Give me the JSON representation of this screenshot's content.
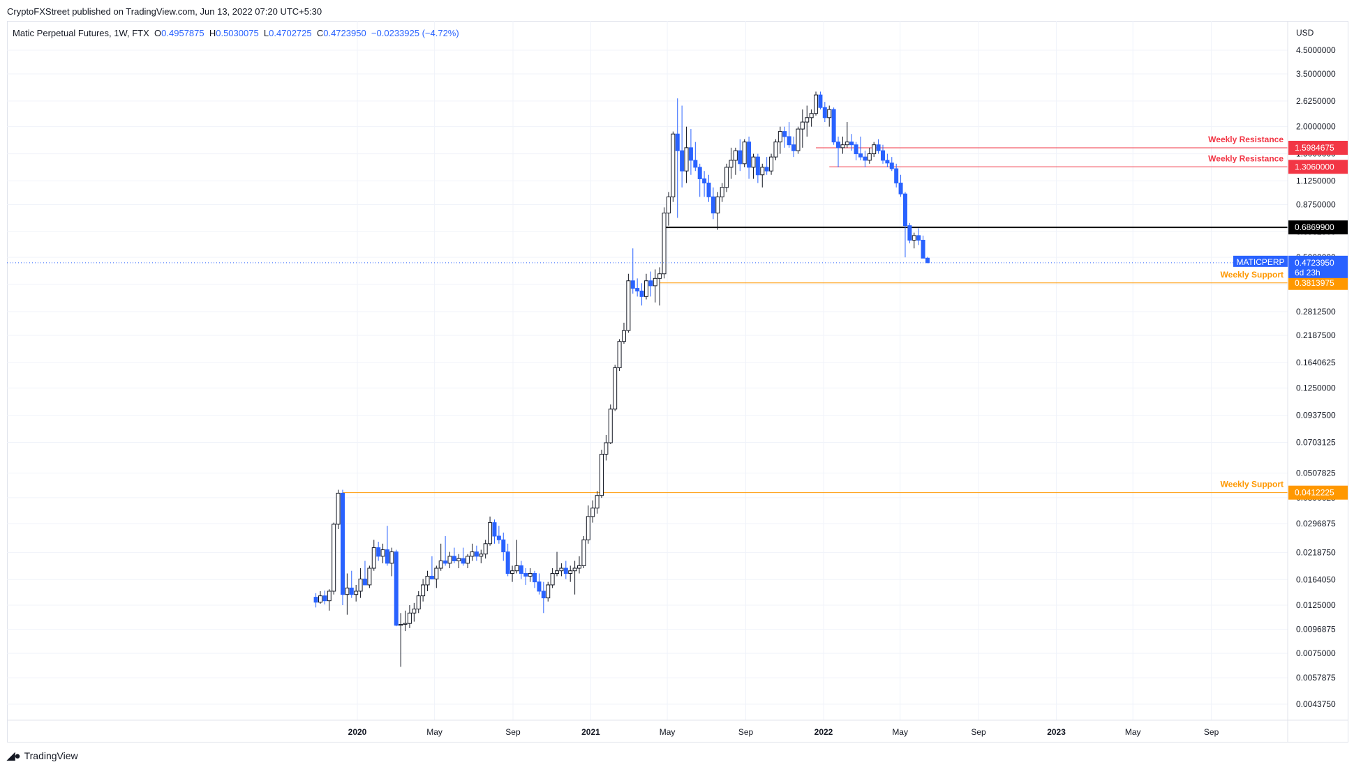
{
  "publisher": "CryptoFXStreet published on TradingView.com, Jun 13, 2022 07:20 UTC+5:30",
  "legend": {
    "symbol": "Matic Perpetual Futures, 1W, FTX",
    "o_label": "O",
    "o": "0.4957875",
    "h_label": "H",
    "h": "0.5030075",
    "l_label": "L",
    "l": "0.4702725",
    "c_label": "C",
    "c": "0.4723950",
    "change": "−0.0233925 (−4.72%)"
  },
  "footer_logo": "TradingView",
  "chart_data": {
    "type": "candlestick",
    "scale": "log",
    "currency": "USD",
    "y_ticks": [
      "4.5000000",
      "3.5000000",
      "2.6250000",
      "2.0000000",
      "1.5000000",
      "1.1250000",
      "0.8750000",
      "0.6562500",
      "0.5000000",
      "0.3750000",
      "0.2812500",
      "0.2187500",
      "0.1640625",
      "0.1250000",
      "0.0937500",
      "0.0703125",
      "0.0507825",
      "0.0390625",
      "0.0296875",
      "0.0218750",
      "0.0164050",
      "0.0125000",
      "0.0096875",
      "0.0075000",
      "0.0057875",
      "0.0043750"
    ],
    "x_ticks": [
      {
        "label": "2020",
        "date": "2020-01-01",
        "bold": true
      },
      {
        "label": "May",
        "date": "2020-05-01",
        "bold": false
      },
      {
        "label": "Sep",
        "date": "2020-09-01",
        "bold": false
      },
      {
        "label": "2021",
        "date": "2021-01-01",
        "bold": true
      },
      {
        "label": "May",
        "date": "2021-05-01",
        "bold": false
      },
      {
        "label": "Sep",
        "date": "2021-09-01",
        "bold": false
      },
      {
        "label": "2022",
        "date": "2022-01-01",
        "bold": true
      },
      {
        "label": "May",
        "date": "2022-05-01",
        "bold": false
      },
      {
        "label": "Sep",
        "date": "2022-09-01",
        "bold": false
      },
      {
        "label": "2023",
        "date": "2023-01-01",
        "bold": true
      },
      {
        "label": "May",
        "date": "2023-05-01",
        "bold": false
      },
      {
        "label": "Sep",
        "date": "2023-09-01",
        "bold": false
      }
    ],
    "levels": [
      {
        "name": "Weekly Resistance",
        "price": 1.5984675,
        "label": "1.5984675",
        "color": "#f23645",
        "from": "2021-12-20"
      },
      {
        "name": "Weekly Resistance",
        "price": 1.306,
        "label": "1.3060000",
        "color": "#f23645",
        "from": "2022-01-10"
      },
      {
        "name": "",
        "price": 0.68699,
        "label": "0.6869900",
        "color": "#000000",
        "from": "2021-04-26"
      },
      {
        "name": "Weekly Support",
        "price": 0.3813975,
        "label": "0.3813975",
        "color": "#ff9800",
        "from": "2021-04-19"
      },
      {
        "name": "Weekly Support",
        "price": 0.0412225,
        "label": "0.0412225",
        "color": "#ff9800",
        "from": "2019-12-09"
      }
    ],
    "last_price": {
      "symbol": "MATICPERP",
      "price": 0.472395,
      "label": "0.4723950",
      "countdown": "6d 23h",
      "color": "#2962ff"
    },
    "up_color": "#ffffff",
    "down_color": "#2962ff",
    "candles": [
      {
        "d": "2019-10-28",
        "o": 0.0136,
        "h": 0.0142,
        "l": 0.0122,
        "c": 0.0129
      },
      {
        "d": "2019-11-04",
        "o": 0.0129,
        "h": 0.0145,
        "l": 0.0127,
        "c": 0.0138
      },
      {
        "d": "2019-11-11",
        "o": 0.0138,
        "h": 0.0146,
        "l": 0.0126,
        "c": 0.0131
      },
      {
        "d": "2019-11-18",
        "o": 0.0131,
        "h": 0.0148,
        "l": 0.0118,
        "c": 0.0145
      },
      {
        "d": "2019-11-25",
        "o": 0.0145,
        "h": 0.03,
        "l": 0.014,
        "c": 0.0295
      },
      {
        "d": "2019-12-02",
        "o": 0.0295,
        "h": 0.0425,
        "l": 0.028,
        "c": 0.041
      },
      {
        "d": "2019-12-09",
        "o": 0.041,
        "h": 0.0425,
        "l": 0.0125,
        "c": 0.014
      },
      {
        "d": "2019-12-16",
        "o": 0.014,
        "h": 0.0175,
        "l": 0.0113,
        "c": 0.015
      },
      {
        "d": "2019-12-23",
        "o": 0.015,
        "h": 0.018,
        "l": 0.0135,
        "c": 0.014
      },
      {
        "d": "2019-12-30",
        "o": 0.014,
        "h": 0.0155,
        "l": 0.013,
        "c": 0.0145
      },
      {
        "d": "2020-01-06",
        "o": 0.0145,
        "h": 0.0185,
        "l": 0.0135,
        "c": 0.0165
      },
      {
        "d": "2020-01-13",
        "o": 0.0165,
        "h": 0.02,
        "l": 0.0155,
        "c": 0.0155
      },
      {
        "d": "2020-01-20",
        "o": 0.0155,
        "h": 0.019,
        "l": 0.015,
        "c": 0.0185
      },
      {
        "d": "2020-01-27",
        "o": 0.0185,
        "h": 0.025,
        "l": 0.018,
        "c": 0.023
      },
      {
        "d": "2020-02-03",
        "o": 0.023,
        "h": 0.0245,
        "l": 0.02,
        "c": 0.021
      },
      {
        "d": "2020-02-10",
        "o": 0.021,
        "h": 0.024,
        "l": 0.0195,
        "c": 0.0225
      },
      {
        "d": "2020-02-17",
        "o": 0.0225,
        "h": 0.029,
        "l": 0.019,
        "c": 0.0195
      },
      {
        "d": "2020-02-24",
        "o": 0.0195,
        "h": 0.023,
        "l": 0.017,
        "c": 0.022
      },
      {
        "d": "2020-03-02",
        "o": 0.022,
        "h": 0.0225,
        "l": 0.01,
        "c": 0.0101
      },
      {
        "d": "2020-03-09",
        "o": 0.0101,
        "h": 0.0115,
        "l": 0.0065,
        "c": 0.0102
      },
      {
        "d": "2020-03-16",
        "o": 0.0102,
        "h": 0.0118,
        "l": 0.0095,
        "c": 0.0103
      },
      {
        "d": "2020-03-23",
        "o": 0.0103,
        "h": 0.0125,
        "l": 0.0098,
        "c": 0.0115
      },
      {
        "d": "2020-03-30",
        "o": 0.0115,
        "h": 0.0128,
        "l": 0.0105,
        "c": 0.012
      },
      {
        "d": "2020-04-06",
        "o": 0.012,
        "h": 0.0145,
        "l": 0.0115,
        "c": 0.0138
      },
      {
        "d": "2020-04-13",
        "o": 0.0138,
        "h": 0.0165,
        "l": 0.013,
        "c": 0.0155
      },
      {
        "d": "2020-04-20",
        "o": 0.0155,
        "h": 0.018,
        "l": 0.0145,
        "c": 0.017
      },
      {
        "d": "2020-04-27",
        "o": 0.017,
        "h": 0.021,
        "l": 0.0165,
        "c": 0.0165
      },
      {
        "d": "2020-05-04",
        "o": 0.0165,
        "h": 0.019,
        "l": 0.015,
        "c": 0.0185
      },
      {
        "d": "2020-05-11",
        "o": 0.0185,
        "h": 0.024,
        "l": 0.018,
        "c": 0.02
      },
      {
        "d": "2020-05-18",
        "o": 0.02,
        "h": 0.026,
        "l": 0.019,
        "c": 0.0195
      },
      {
        "d": "2020-05-25",
        "o": 0.0195,
        "h": 0.022,
        "l": 0.0185,
        "c": 0.021
      },
      {
        "d": "2020-06-01",
        "o": 0.021,
        "h": 0.023,
        "l": 0.0195,
        "c": 0.02
      },
      {
        "d": "2020-06-08",
        "o": 0.02,
        "h": 0.0215,
        "l": 0.0185,
        "c": 0.0205
      },
      {
        "d": "2020-06-15",
        "o": 0.0205,
        "h": 0.023,
        "l": 0.019,
        "c": 0.0195
      },
      {
        "d": "2020-06-22",
        "o": 0.0195,
        "h": 0.0215,
        "l": 0.0185,
        "c": 0.021
      },
      {
        "d": "2020-06-29",
        "o": 0.021,
        "h": 0.024,
        "l": 0.02,
        "c": 0.022
      },
      {
        "d": "2020-07-06",
        "o": 0.022,
        "h": 0.0235,
        "l": 0.02,
        "c": 0.021
      },
      {
        "d": "2020-07-13",
        "o": 0.021,
        "h": 0.0225,
        "l": 0.0195,
        "c": 0.0215
      },
      {
        "d": "2020-07-20",
        "o": 0.0215,
        "h": 0.025,
        "l": 0.0205,
        "c": 0.024
      },
      {
        "d": "2020-07-27",
        "o": 0.024,
        "h": 0.032,
        "l": 0.0235,
        "c": 0.03
      },
      {
        "d": "2020-08-03",
        "o": 0.03,
        "h": 0.031,
        "l": 0.024,
        "c": 0.026
      },
      {
        "d": "2020-08-10",
        "o": 0.026,
        "h": 0.029,
        "l": 0.024,
        "c": 0.025
      },
      {
        "d": "2020-08-17",
        "o": 0.025,
        "h": 0.027,
        "l": 0.02,
        "c": 0.022
      },
      {
        "d": "2020-08-24",
        "o": 0.022,
        "h": 0.024,
        "l": 0.017,
        "c": 0.0175
      },
      {
        "d": "2020-08-31",
        "o": 0.0175,
        "h": 0.019,
        "l": 0.016,
        "c": 0.018
      },
      {
        "d": "2020-09-07",
        "o": 0.018,
        "h": 0.025,
        "l": 0.0175,
        "c": 0.019
      },
      {
        "d": "2020-09-14",
        "o": 0.019,
        "h": 0.02,
        "l": 0.0165,
        "c": 0.0175
      },
      {
        "d": "2020-09-21",
        "o": 0.0175,
        "h": 0.0185,
        "l": 0.0155,
        "c": 0.017
      },
      {
        "d": "2020-09-28",
        "o": 0.017,
        "h": 0.0185,
        "l": 0.016,
        "c": 0.0175
      },
      {
        "d": "2020-10-05",
        "o": 0.0175,
        "h": 0.018,
        "l": 0.015,
        "c": 0.016
      },
      {
        "d": "2020-10-12",
        "o": 0.016,
        "h": 0.0175,
        "l": 0.014,
        "c": 0.0145
      },
      {
        "d": "2020-10-19",
        "o": 0.0145,
        "h": 0.016,
        "l": 0.0115,
        "c": 0.0135
      },
      {
        "d": "2020-10-26",
        "o": 0.0135,
        "h": 0.016,
        "l": 0.013,
        "c": 0.0155
      },
      {
        "d": "2020-11-02",
        "o": 0.0155,
        "h": 0.0185,
        "l": 0.015,
        "c": 0.0175
      },
      {
        "d": "2020-11-09",
        "o": 0.0175,
        "h": 0.022,
        "l": 0.017,
        "c": 0.018
      },
      {
        "d": "2020-11-16",
        "o": 0.018,
        "h": 0.0195,
        "l": 0.017,
        "c": 0.0185
      },
      {
        "d": "2020-11-23",
        "o": 0.0185,
        "h": 0.02,
        "l": 0.0165,
        "c": 0.0175
      },
      {
        "d": "2020-11-30",
        "o": 0.0175,
        "h": 0.019,
        "l": 0.016,
        "c": 0.018
      },
      {
        "d": "2020-12-07",
        "o": 0.018,
        "h": 0.02,
        "l": 0.014,
        "c": 0.0185
      },
      {
        "d": "2020-12-14",
        "o": 0.0185,
        "h": 0.021,
        "l": 0.0175,
        "c": 0.019
      },
      {
        "d": "2020-12-21",
        "o": 0.019,
        "h": 0.026,
        "l": 0.0185,
        "c": 0.025
      },
      {
        "d": "2020-12-28",
        "o": 0.025,
        "h": 0.036,
        "l": 0.024,
        "c": 0.032
      },
      {
        "d": "2021-01-04",
        "o": 0.032,
        "h": 0.038,
        "l": 0.03,
        "c": 0.035
      },
      {
        "d": "2021-01-11",
        "o": 0.035,
        "h": 0.042,
        "l": 0.033,
        "c": 0.04
      },
      {
        "d": "2021-01-18",
        "o": 0.04,
        "h": 0.065,
        "l": 0.039,
        "c": 0.062
      },
      {
        "d": "2021-01-25",
        "o": 0.062,
        "h": 0.076,
        "l": 0.058,
        "c": 0.07
      },
      {
        "d": "2021-02-01",
        "o": 0.07,
        "h": 0.105,
        "l": 0.069,
        "c": 0.1
      },
      {
        "d": "2021-02-08",
        "o": 0.1,
        "h": 0.16,
        "l": 0.098,
        "c": 0.155
      },
      {
        "d": "2021-02-15",
        "o": 0.155,
        "h": 0.21,
        "l": 0.15,
        "c": 0.205
      },
      {
        "d": "2021-02-22",
        "o": 0.205,
        "h": 0.25,
        "l": 0.2,
        "c": 0.23
      },
      {
        "d": "2021-03-01",
        "o": 0.23,
        "h": 0.42,
        "l": 0.225,
        "c": 0.39
      },
      {
        "d": "2021-03-08",
        "o": 0.39,
        "h": 0.55,
        "l": 0.34,
        "c": 0.36
      },
      {
        "d": "2021-03-15",
        "o": 0.36,
        "h": 0.4,
        "l": 0.33,
        "c": 0.35
      },
      {
        "d": "2021-03-22",
        "o": 0.35,
        "h": 0.38,
        "l": 0.3,
        "c": 0.33
      },
      {
        "d": "2021-03-29",
        "o": 0.33,
        "h": 0.42,
        "l": 0.32,
        "c": 0.39
      },
      {
        "d": "2021-04-05",
        "o": 0.39,
        "h": 0.43,
        "l": 0.33,
        "c": 0.37
      },
      {
        "d": "2021-04-12",
        "o": 0.37,
        "h": 0.44,
        "l": 0.31,
        "c": 0.4
      },
      {
        "d": "2021-04-19",
        "o": 0.4,
        "h": 0.45,
        "l": 0.3,
        "c": 0.42
      },
      {
        "d": "2021-04-26",
        "o": 0.42,
        "h": 0.85,
        "l": 0.4,
        "c": 0.8
      },
      {
        "d": "2021-05-03",
        "o": 0.8,
        "h": 1.0,
        "l": 0.7,
        "c": 0.95
      },
      {
        "d": "2021-05-10",
        "o": 0.95,
        "h": 1.9,
        "l": 0.9,
        "c": 1.85
      },
      {
        "d": "2021-05-17",
        "o": 1.85,
        "h": 2.7,
        "l": 0.76,
        "c": 1.55
      },
      {
        "d": "2021-05-24",
        "o": 1.55,
        "h": 2.5,
        "l": 1.05,
        "c": 1.25
      },
      {
        "d": "2021-05-31",
        "o": 1.25,
        "h": 2.0,
        "l": 1.1,
        "c": 1.6
      },
      {
        "d": "2021-06-07",
        "o": 1.6,
        "h": 1.95,
        "l": 1.2,
        "c": 1.4
      },
      {
        "d": "2021-06-14",
        "o": 1.4,
        "h": 1.7,
        "l": 1.25,
        "c": 1.3
      },
      {
        "d": "2021-06-21",
        "o": 1.3,
        "h": 1.35,
        "l": 0.95,
        "c": 1.15
      },
      {
        "d": "2021-06-28",
        "o": 1.15,
        "h": 1.25,
        "l": 0.95,
        "c": 1.1
      },
      {
        "d": "2021-07-05",
        "o": 1.1,
        "h": 1.2,
        "l": 0.9,
        "c": 0.95
      },
      {
        "d": "2021-07-12",
        "o": 0.95,
        "h": 1.05,
        "l": 0.75,
        "c": 0.8
      },
      {
        "d": "2021-07-19",
        "o": 0.8,
        "h": 1.0,
        "l": 0.67,
        "c": 0.95
      },
      {
        "d": "2021-07-26",
        "o": 0.95,
        "h": 1.1,
        "l": 0.9,
        "c": 1.05
      },
      {
        "d": "2021-08-02",
        "o": 1.05,
        "h": 1.35,
        "l": 1.0,
        "c": 1.3
      },
      {
        "d": "2021-08-09",
        "o": 1.3,
        "h": 1.6,
        "l": 1.15,
        "c": 1.4
      },
      {
        "d": "2021-08-16",
        "o": 1.4,
        "h": 1.6,
        "l": 1.2,
        "c": 1.55
      },
      {
        "d": "2021-08-23",
        "o": 1.55,
        "h": 1.75,
        "l": 1.25,
        "c": 1.35
      },
      {
        "d": "2021-08-30",
        "o": 1.35,
        "h": 1.75,
        "l": 1.3,
        "c": 1.7
      },
      {
        "d": "2021-09-06",
        "o": 1.7,
        "h": 1.8,
        "l": 1.15,
        "c": 1.3
      },
      {
        "d": "2021-09-13",
        "o": 1.3,
        "h": 1.5,
        "l": 1.15,
        "c": 1.45
      },
      {
        "d": "2021-09-20",
        "o": 1.45,
        "h": 1.5,
        "l": 1.1,
        "c": 1.2
      },
      {
        "d": "2021-09-27",
        "o": 1.2,
        "h": 1.35,
        "l": 1.05,
        "c": 1.3
      },
      {
        "d": "2021-10-04",
        "o": 1.3,
        "h": 1.45,
        "l": 1.2,
        "c": 1.25
      },
      {
        "d": "2021-10-11",
        "o": 1.25,
        "h": 1.5,
        "l": 1.2,
        "c": 1.45
      },
      {
        "d": "2021-10-18",
        "o": 1.45,
        "h": 1.75,
        "l": 1.4,
        "c": 1.7
      },
      {
        "d": "2021-10-25",
        "o": 1.7,
        "h": 2.0,
        "l": 1.5,
        "c": 1.9
      },
      {
        "d": "2021-11-01",
        "o": 1.9,
        "h": 2.0,
        "l": 1.6,
        "c": 1.8
      },
      {
        "d": "2021-11-08",
        "o": 1.8,
        "h": 2.1,
        "l": 1.6,
        "c": 1.65
      },
      {
        "d": "2021-11-15",
        "o": 1.65,
        "h": 1.8,
        "l": 1.45,
        "c": 1.55
      },
      {
        "d": "2021-11-22",
        "o": 1.55,
        "h": 2.0,
        "l": 1.5,
        "c": 1.95
      },
      {
        "d": "2021-11-29",
        "o": 1.95,
        "h": 2.4,
        "l": 1.6,
        "c": 2.1
      },
      {
        "d": "2021-12-06",
        "o": 2.1,
        "h": 2.5,
        "l": 1.8,
        "c": 2.2
      },
      {
        "d": "2021-12-13",
        "o": 2.2,
        "h": 2.4,
        "l": 2.0,
        "c": 2.3
      },
      {
        "d": "2021-12-20",
        "o": 2.3,
        "h": 2.9,
        "l": 2.25,
        "c": 2.8
      },
      {
        "d": "2021-12-27",
        "o": 2.8,
        "h": 2.9,
        "l": 2.4,
        "c": 2.45
      },
      {
        "d": "2022-01-03",
        "o": 2.45,
        "h": 2.6,
        "l": 2.1,
        "c": 2.2
      },
      {
        "d": "2022-01-10",
        "o": 2.2,
        "h": 2.5,
        "l": 2.0,
        "c": 2.4
      },
      {
        "d": "2022-01-17",
        "o": 2.4,
        "h": 2.45,
        "l": 1.65,
        "c": 1.7
      },
      {
        "d": "2022-01-24",
        "o": 1.7,
        "h": 1.8,
        "l": 1.3,
        "c": 1.6
      },
      {
        "d": "2022-01-31",
        "o": 1.6,
        "h": 1.8,
        "l": 1.5,
        "c": 1.65
      },
      {
        "d": "2022-02-07",
        "o": 1.65,
        "h": 2.1,
        "l": 1.6,
        "c": 1.7
      },
      {
        "d": "2022-02-14",
        "o": 1.7,
        "h": 1.85,
        "l": 1.55,
        "c": 1.65
      },
      {
        "d": "2022-02-21",
        "o": 1.65,
        "h": 1.7,
        "l": 1.4,
        "c": 1.5
      },
      {
        "d": "2022-02-28",
        "o": 1.5,
        "h": 1.8,
        "l": 1.4,
        "c": 1.45
      },
      {
        "d": "2022-03-07",
        "o": 1.45,
        "h": 1.55,
        "l": 1.3,
        "c": 1.4
      },
      {
        "d": "2022-03-14",
        "o": 1.4,
        "h": 1.6,
        "l": 1.35,
        "c": 1.5
      },
      {
        "d": "2022-03-21",
        "o": 1.5,
        "h": 1.7,
        "l": 1.45,
        "c": 1.65
      },
      {
        "d": "2022-03-28",
        "o": 1.65,
        "h": 1.75,
        "l": 1.5,
        "c": 1.55
      },
      {
        "d": "2022-04-04",
        "o": 1.55,
        "h": 1.65,
        "l": 1.35,
        "c": 1.4
      },
      {
        "d": "2022-04-11",
        "o": 1.4,
        "h": 1.5,
        "l": 1.3,
        "c": 1.36
      },
      {
        "d": "2022-04-18",
        "o": 1.36,
        "h": 1.45,
        "l": 1.25,
        "c": 1.28
      },
      {
        "d": "2022-04-25",
        "o": 1.28,
        "h": 1.35,
        "l": 1.05,
        "c": 1.1
      },
      {
        "d": "2022-05-02",
        "o": 1.1,
        "h": 1.2,
        "l": 0.95,
        "c": 0.98
      },
      {
        "d": "2022-05-09",
        "o": 0.98,
        "h": 1.0,
        "l": 0.5,
        "c": 0.7
      },
      {
        "d": "2022-05-16",
        "o": 0.7,
        "h": 0.72,
        "l": 0.58,
        "c": 0.6
      },
      {
        "d": "2022-05-23",
        "o": 0.6,
        "h": 0.65,
        "l": 0.55,
        "c": 0.63
      },
      {
        "d": "2022-05-30",
        "o": 0.63,
        "h": 0.68,
        "l": 0.57,
        "c": 0.6
      },
      {
        "d": "2022-06-06",
        "o": 0.6,
        "h": 0.63,
        "l": 0.5,
        "c": 0.4958
      },
      {
        "d": "2022-06-13",
        "o": 0.4957875,
        "h": 0.5030075,
        "l": 0.4702725,
        "c": 0.472395
      }
    ]
  }
}
